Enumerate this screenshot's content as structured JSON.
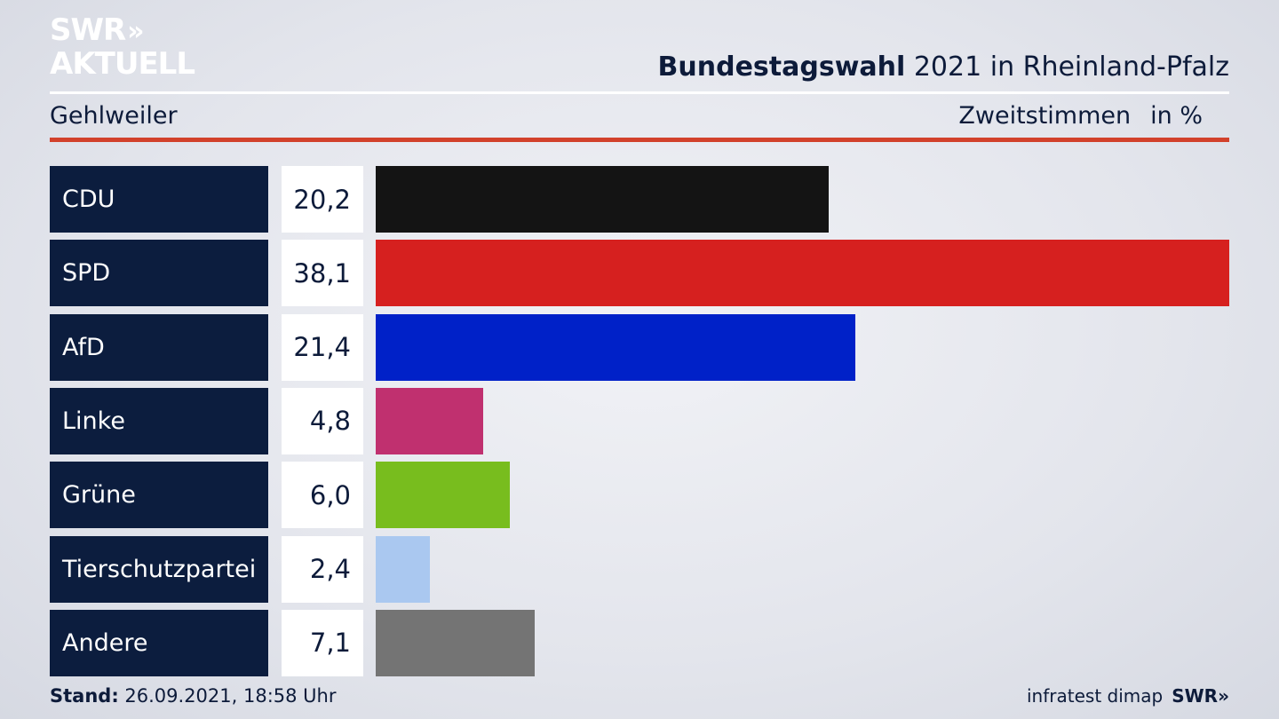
{
  "brand": {
    "logo_line1": "SWR",
    "logo_arrows": "»",
    "logo_line2": "AKTUELL"
  },
  "header": {
    "title_bold": "Bundestagswahl",
    "title_rest": " 2021 in Rheinland-Pfalz",
    "location": "Gehlweiler",
    "vote_type": "Zweitstimmen",
    "unit": "in %"
  },
  "chart_data": {
    "type": "bar",
    "orientation": "horizontal",
    "categories": [
      "CDU",
      "SPD",
      "AfD",
      "Linke",
      "Grüne",
      "Tierschutzpartei",
      "Andere"
    ],
    "values": [
      20.2,
      38.1,
      21.4,
      4.8,
      6.0,
      2.4,
      7.1
    ],
    "value_labels": [
      "20,2",
      "38,1",
      "21,4",
      "4,8",
      "6,0",
      "2,4",
      "7,1"
    ],
    "colors": [
      "#141414",
      "#d6201f",
      "#0021c8",
      "#c0306f",
      "#78bd1e",
      "#aac8f0",
      "#747474"
    ],
    "xlim": [
      0,
      38.1
    ],
    "grid": false,
    "legend": "none"
  },
  "footer": {
    "stand_label": "Stand:",
    "stand_value": " 26.09.2021, 18:58 Uhr",
    "source": "infratest dimap",
    "source_brand": "SWR»"
  }
}
